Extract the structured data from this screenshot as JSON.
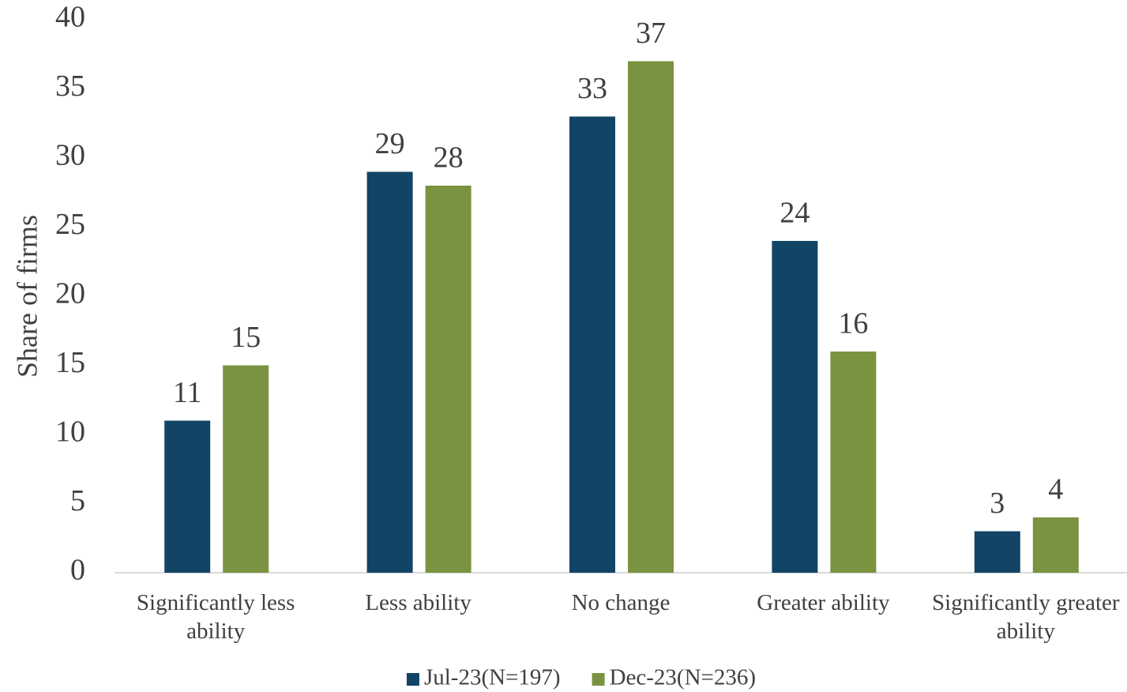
{
  "chart_data": {
    "type": "bar",
    "y_label": "Share of firms",
    "categories": [
      "Significantly less ability",
      "Less ability",
      "No change",
      "Greater ability",
      "Significantly greater ability"
    ],
    "series": [
      {
        "name": "Jul-23(N=197)",
        "color": "#124466",
        "values": [
          11,
          29,
          33,
          24,
          3
        ]
      },
      {
        "name": "Dec-23(N=236)",
        "color": "#7a9340",
        "values": [
          15,
          28,
          37,
          16,
          4
        ]
      }
    ],
    "ylim": [
      0,
      40
    ],
    "yticks": [
      0,
      5,
      10,
      15,
      20,
      25,
      30,
      35,
      40
    ],
    "grid": false,
    "legend": "bottom"
  }
}
